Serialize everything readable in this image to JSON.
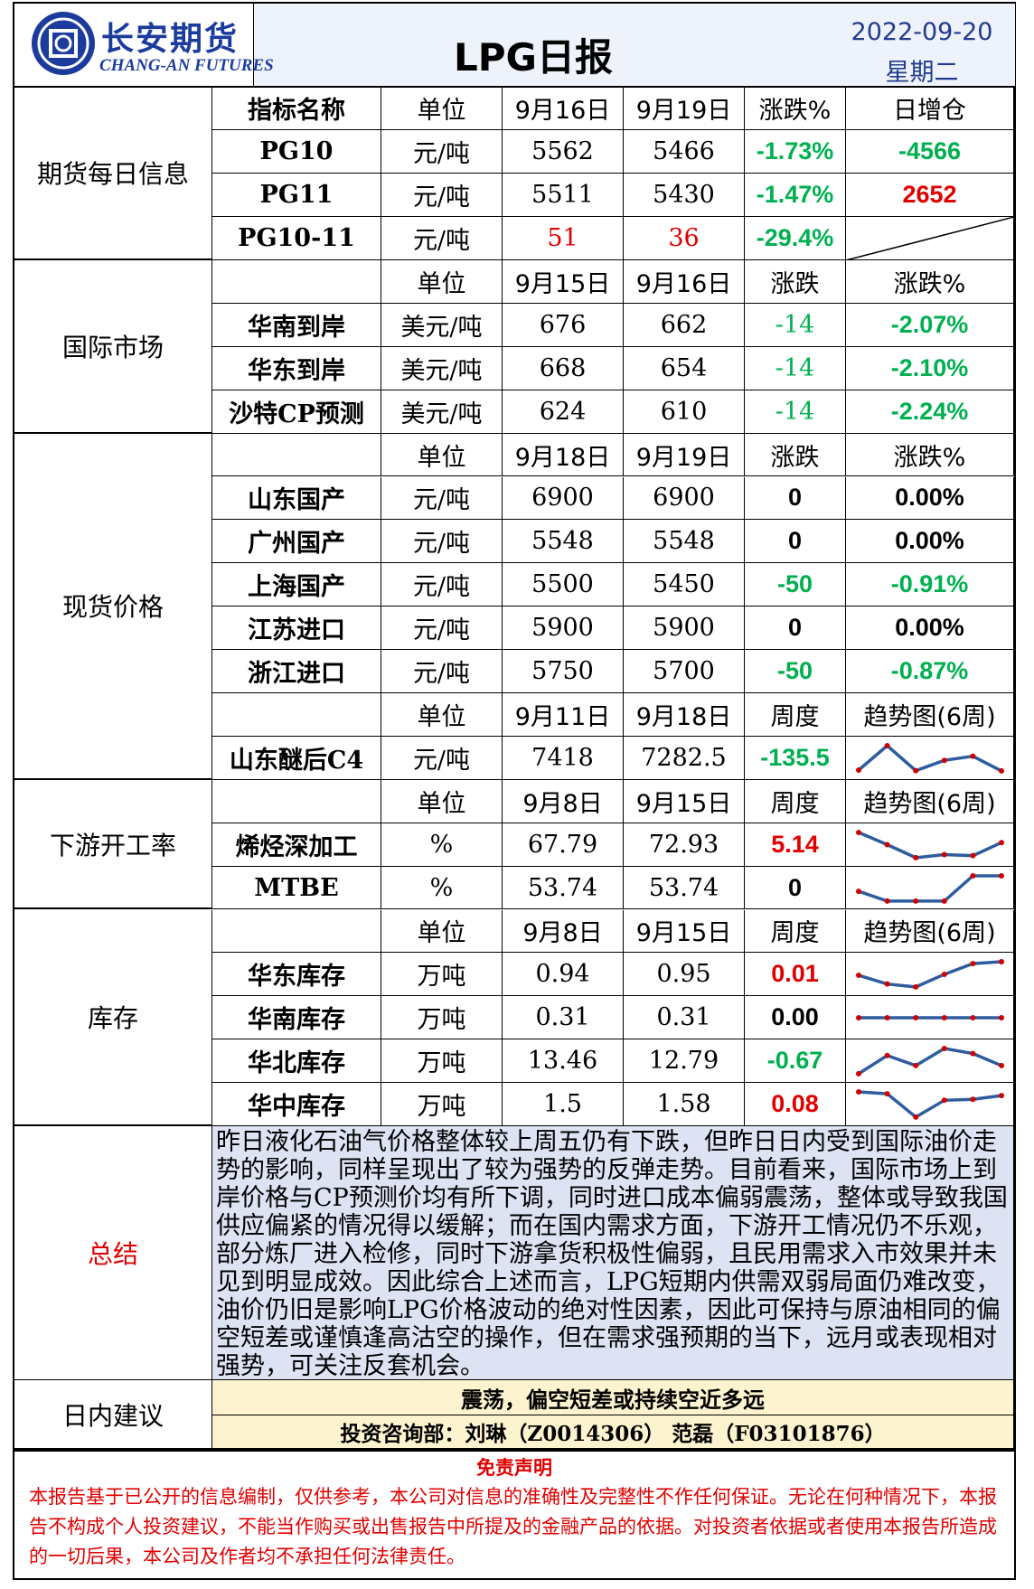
{
  "header": {
    "logo_cn": "长安期货",
    "logo_en": "CHANG-AN FUTURES",
    "title": "LPG日报",
    "date": "2022-09-20",
    "weekday": "星期二"
  },
  "sections": [
    {
      "label": "期货每日信息",
      "blocks": [
        {
          "header": [
            "指标名称",
            "单位",
            "9月16日",
            "9月19日",
            "涨跌%",
            "日增仓"
          ],
          "rows": [
            {
              "cells": [
                "PG10",
                "元/吨",
                "5562",
                "5466",
                "-1.73%",
                "-4566"
              ]
            },
            {
              "cells": [
                "PG11",
                "元/吨",
                "5511",
                "5430",
                "-1.47%",
                "2652"
              ]
            },
            {
              "cells": [
                "PG10-11",
                "元/吨",
                "51",
                "36",
                "-29.4%"
              ]
            }
          ]
        }
      ]
    },
    {
      "label": "国际市场",
      "blocks": [
        {
          "header": [
            null,
            "单位",
            "9月15日",
            "9月16日",
            "涨跌",
            "涨跌%"
          ],
          "rows": [
            {
              "cells": [
                "华南到岸",
                "美元/吨",
                "676",
                "662",
                "-14",
                "-2.07%"
              ]
            },
            {
              "cells": [
                "华东到岸",
                "美元/吨",
                "668",
                "654",
                "-14",
                "-2.10%"
              ]
            },
            {
              "cells": [
                "沙特CP预测",
                "美元/吨",
                "624",
                "610",
                "-14",
                "-2.24%"
              ]
            }
          ]
        }
      ]
    },
    {
      "label": "现货价格",
      "blocks": [
        {
          "header": [
            null,
            "单位",
            "9月18日",
            "9月19日",
            "涨跌",
            "涨跌%"
          ],
          "rows": [
            {
              "cells": [
                "山东国产",
                "元/吨",
                "6900",
                "6900",
                "0",
                "0.00%"
              ]
            },
            {
              "cells": [
                "广州国产",
                "元/吨",
                "5548",
                "5548",
                "0",
                "0.00%"
              ]
            },
            {
              "cells": [
                "上海国产",
                "元/吨",
                "5500",
                "5450",
                "-50",
                "-0.91%"
              ]
            },
            {
              "cells": [
                "江苏进口",
                "元/吨",
                "5900",
                "5900",
                "0",
                "0.00%"
              ]
            },
            {
              "cells": [
                "浙江进口",
                "元/吨",
                "5750",
                "5700",
                "-50",
                "-0.87%"
              ]
            }
          ]
        },
        {
          "header": [
            null,
            "单位",
            "9月11日",
            "9月18日",
            "周度",
            "趋势图(6周)"
          ],
          "rows": [
            {
              "cells": [
                "山东醚后C4",
                "元/吨",
                "7418",
                "7282.5",
                "-135.5"
              ],
              "trend": [
                7290,
                7515,
                7285,
                7380,
                7418,
                7282.5
              ]
            }
          ]
        }
      ]
    },
    {
      "label": "下游开工率",
      "blocks": [
        {
          "header": [
            null,
            "单位",
            "9月8日",
            "9月15日",
            "周度",
            "趋势图(6周)"
          ],
          "rows": [
            {
              "cells": [
                "烯烃深加工",
                "%",
                "67.79",
                "72.93",
                "5.14"
              ],
              "trend": [
                76.9,
                72.1,
                67.0,
                68.2,
                67.79,
                72.93
              ]
            },
            {
              "cells": [
                "MTBE",
                "%",
                "53.74",
                "53.74",
                "0"
              ],
              "trend": [
                49,
                46,
                46,
                46,
                53.74,
                53.74
              ]
            }
          ]
        }
      ]
    },
    {
      "label": "库存",
      "blocks": [
        {
          "header": [
            null,
            "单位",
            "9月8日",
            "9月15日",
            "周度",
            "趋势图(6周)"
          ],
          "rows": [
            {
              "cells": [
                "华东库存",
                "万吨",
                "0.94",
                "0.95",
                "0.01"
              ],
              "trend": [
                0.88,
                0.835,
                0.82,
                0.885,
                0.94,
                0.95
              ]
            },
            {
              "cells": [
                "华南库存",
                "万吨",
                "0.31",
                "0.31",
                "0.00"
              ],
              "trend": [
                0.31,
                0.31,
                0.31,
                0.31,
                0.31,
                0.31
              ]
            },
            {
              "cells": [
                "华北库存",
                "万吨",
                "13.46",
                "12.79",
                "-0.67"
              ],
              "trend": [
                12.34,
                13.35,
                12.79,
                13.74,
                13.46,
                12.79
              ]
            },
            {
              "cells": [
                "华中库存",
                "万吨",
                "1.5",
                "1.58",
                "0.08"
              ],
              "trend": [
                1.66,
                1.62,
                1.12,
                1.48,
                1.5,
                1.58
              ]
            }
          ]
        }
      ]
    }
  ],
  "summary": {
    "label": "总结",
    "text": "昨日液化石油气价格整体较上周五仍有下跌，但昨日日内受到国际油价走势的影响，同样呈现出了较为强势的反弹走势。目前看来，国际市场上到岸价格与CP预测价均有所下调，同时进口成本偏弱震荡，整体或导致我国供应偏紧的情况得以缓解；而在国内需求方面，下游开工情况仍不乐观，部分炼厂进入检修，同时下游拿货积极性偏弱，且民用需求入市效果并未见到明显成效。因此综合上述而言，LPG短期内供需双弱局面仍难改变，油价仍旧是影响LPG价格波动的绝对性因素，因此可保持与原油相同的偏空短差或谨慎逢高沽空的操作，但在需求强预期的当下，远月或表现相对强势，可关注反套机会。"
  },
  "advice": {
    "label": "日内建议",
    "text": "震荡，偏空短差或持续空近多远",
    "contact": "投资咨询部：刘琳（Z0014306） 范磊（F03101876）"
  },
  "disclaimer": {
    "title": "免责声明",
    "text": "本报告基于已公开的信息编制，仅供参考，本公司对信息的准确性及完整性不作任何保证。无论在何种情况下，本报告不构成个人投资建议，不能当作购买或出售报告中所提及的金融产品的依据。对投资者依据或者使用本报告所造成的一切后果，本公司及作者均不承担任何法律责任。"
  }
}
